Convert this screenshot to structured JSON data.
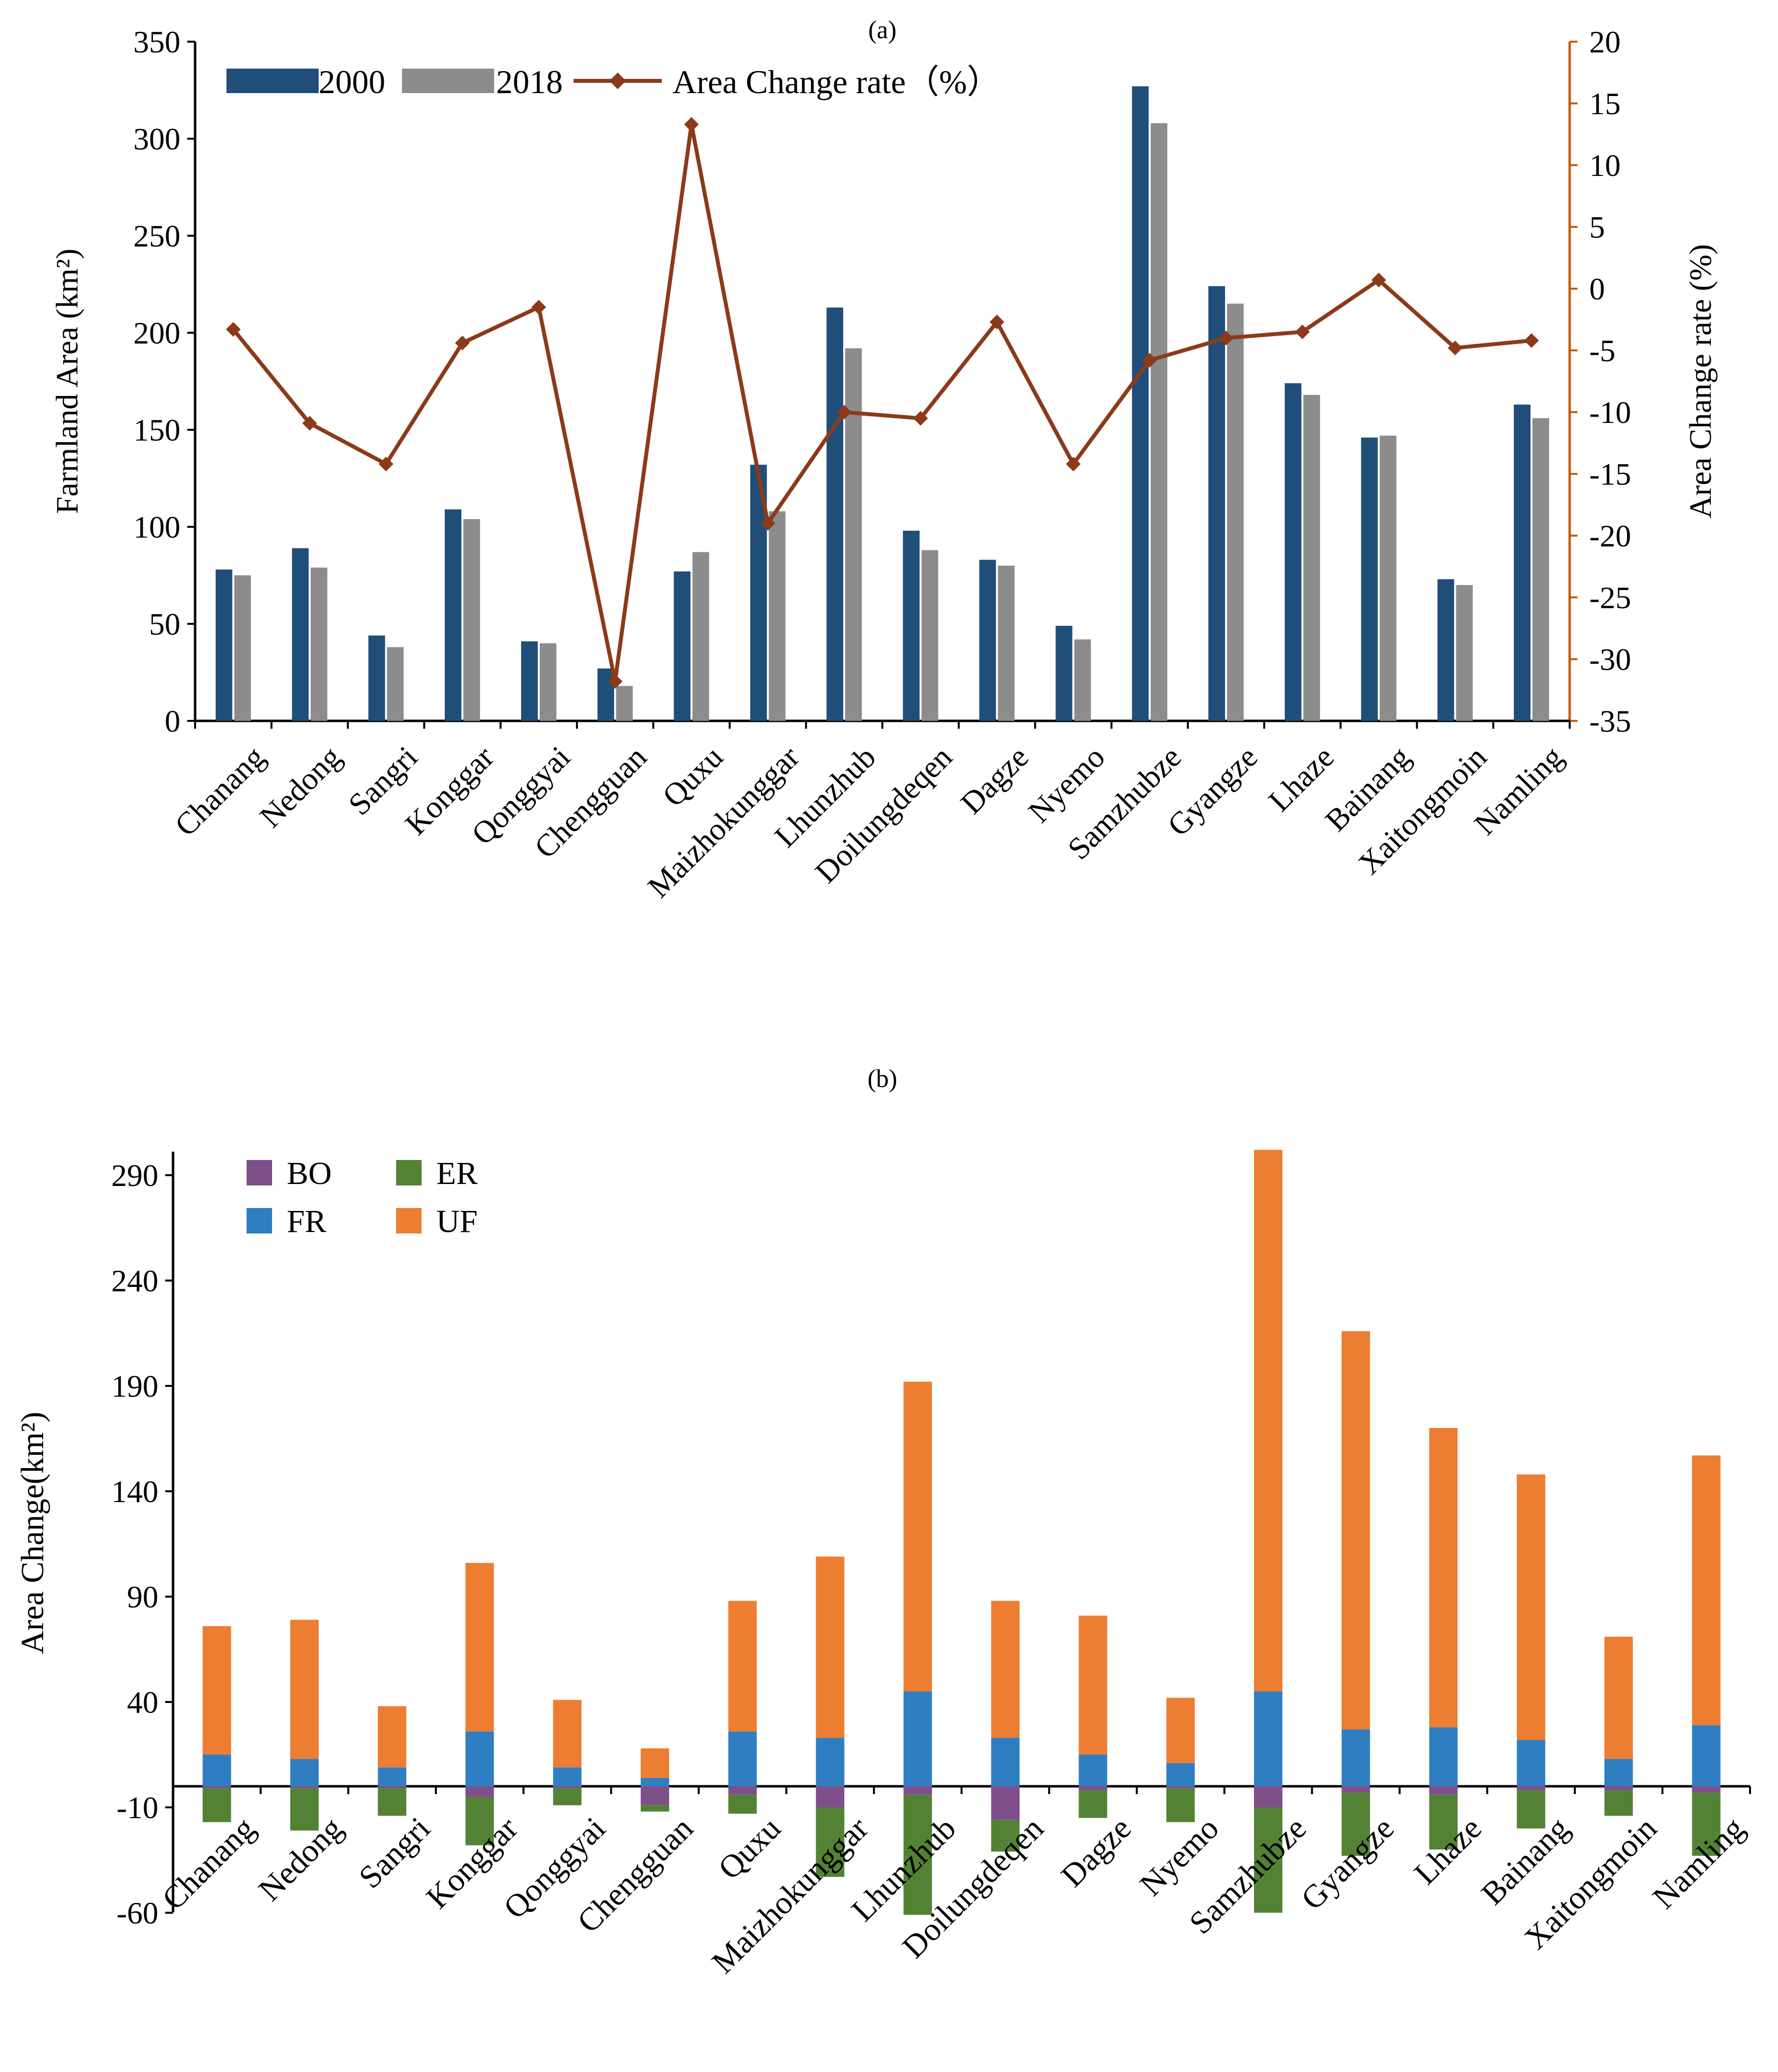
{
  "colors": {
    "bar_2000": "#1f4e79",
    "bar_2018": "#8c8c8c",
    "line_rate": "#8b3a1a",
    "axis_right": "#c55a11",
    "BO": "#7e4f8a",
    "FR": "#2f7ec2",
    "ER": "#548235",
    "UF": "#ed7d31"
  },
  "chart_data": [
    {
      "type": "bar",
      "panel_label": "(a)",
      "ylabel": "Farmland Area (km²)",
      "y2label": "Area Change rate (%)",
      "ylim": [
        0,
        350
      ],
      "y2lim": [
        -35,
        20
      ],
      "yticks": [
        "0",
        "50",
        "100",
        "150",
        "200",
        "250",
        "300",
        "350"
      ],
      "y2ticks": [
        "-35",
        "-30",
        "-25",
        "-20",
        "-15",
        "-10",
        "-5",
        "0",
        "5",
        "10",
        "15",
        "20"
      ],
      "legend": {
        "s2000": "2000",
        "s2018": "2018",
        "rate": "Area Change rate（%）"
      },
      "categories": [
        "Chanang",
        "Nedong",
        "Sangri",
        "Konggar",
        "Qonggyai",
        "Chengguan",
        "Quxu",
        "Maizhokunggar",
        "Lhunzhub",
        "Doilungdeqen",
        "Dagze",
        "Nyemo",
        "Samzhubze",
        "Gyangze",
        "Lhaze",
        "Bainang",
        "Xaitongmoin",
        "Namling"
      ],
      "series": [
        {
          "name": "2000",
          "values": [
            78,
            89,
            44,
            109,
            41,
            27,
            77,
            132,
            213,
            98,
            83,
            49,
            327,
            224,
            174,
            146,
            73,
            163
          ]
        },
        {
          "name": "2018",
          "values": [
            75,
            79,
            38,
            104,
            40,
            18,
            87,
            108,
            192,
            88,
            80,
            42,
            308,
            215,
            168,
            147,
            70,
            156
          ]
        },
        {
          "name": "Area Change rate（%）",
          "axis": "right",
          "values": [
            -3.3,
            -10.9,
            -14.2,
            -4.4,
            -1.5,
            -31.8,
            13.3,
            -19.0,
            -10.0,
            -10.5,
            -2.7,
            -14.2,
            -5.8,
            -4.0,
            -3.5,
            0.7,
            -4.8,
            -4.2
          ]
        }
      ]
    },
    {
      "type": "bar",
      "stacked": true,
      "panel_label": "(b)",
      "ylabel": "Area Change(km²)",
      "ylim": [
        -60,
        300
      ],
      "yticks": [
        "-60",
        "-10",
        "40",
        "90",
        "140",
        "190",
        "240",
        "290"
      ],
      "legend": [
        "BO",
        "ER",
        "FR",
        "UF"
      ],
      "categories": [
        "Chanang",
        "Nedong",
        "Sangri",
        "Konggar",
        "Qonggyai",
        "Chengguan",
        "Quxu",
        "Maizhokunggar",
        "Lhunzhub",
        "Doilungdeqen",
        "Dagze",
        "Nyemo",
        "Samzhubze",
        "Gyangze",
        "Lhaze",
        "Bainang",
        "Xaitongmoin",
        "Namling"
      ],
      "series": [
        {
          "name": "FR",
          "values": [
            15,
            13,
            9,
            26,
            9,
            4,
            26,
            23,
            45,
            23,
            15,
            11,
            45,
            27,
            28,
            22,
            13,
            29
          ]
        },
        {
          "name": "UF",
          "values": [
            61,
            66,
            29,
            80,
            32,
            14,
            62,
            86,
            147,
            65,
            66,
            31,
            257,
            189,
            142,
            126,
            58,
            128
          ]
        },
        {
          "name": "BO",
          "values": [
            -1,
            -1,
            -1,
            -5,
            -1,
            -9,
            -4,
            -10,
            -4,
            -16,
            -2,
            -1,
            -10,
            -3,
            -4,
            -2,
            -2,
            -3
          ]
        },
        {
          "name": "ER",
          "values": [
            -16,
            -20,
            -13,
            -23,
            -8,
            -3,
            -9,
            -33,
            -57,
            -15,
            -13,
            -16,
            -50,
            -30,
            -26,
            -18,
            -12,
            -30
          ]
        }
      ]
    }
  ]
}
